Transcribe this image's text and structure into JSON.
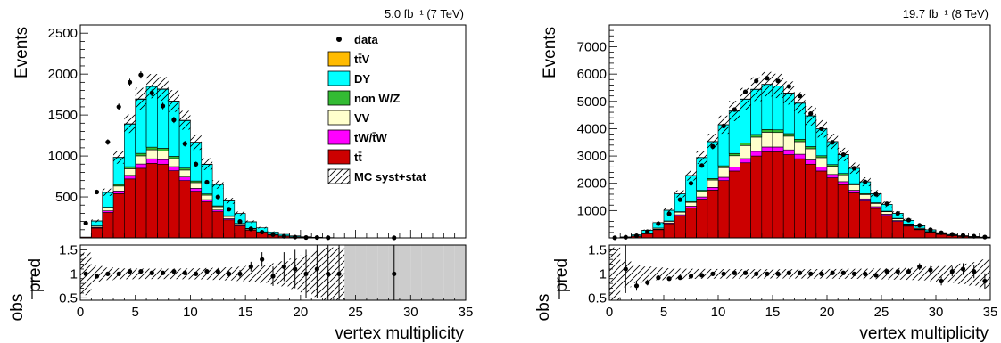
{
  "chart_data": [
    {
      "type": "stacked-bar",
      "luminosity_label": "5.0 fb⁻¹ (7 TeV)",
      "ylabel": "Events",
      "xlabel": "vertex multiplicity",
      "xlim": [
        0,
        35
      ],
      "ylim": [
        0,
        2600
      ],
      "yticks": [
        500,
        1000,
        1500,
        2000,
        2500
      ],
      "xticks": [
        0,
        5,
        10,
        15,
        20,
        25,
        30,
        35
      ],
      "legend": {
        "placement": "top-right",
        "entries": [
          {
            "label": "data",
            "kind": "marker"
          },
          {
            "label": "tt̄V",
            "kind": "box",
            "color": "#ffbb00"
          },
          {
            "label": "DY",
            "kind": "box",
            "color": "#00ffff"
          },
          {
            "label": "non W/Z",
            "kind": "box",
            "color": "#33bb33"
          },
          {
            "label": "VV",
            "kind": "box",
            "color": "#ffffcc"
          },
          {
            "label": "tW/t̄W",
            "kind": "box",
            "color": "#ff00ff"
          },
          {
            "label": "tt̄",
            "kind": "box",
            "color": "#cc0000"
          },
          {
            "label": "MC syst+stat",
            "kind": "hatch"
          }
        ]
      },
      "series": [
        {
          "name": "tt̄",
          "color": "#cc0000",
          "values": [
            10,
            120,
            310,
            540,
            720,
            850,
            910,
            900,
            820,
            700,
            570,
            440,
            320,
            220,
            145,
            95,
            60,
            35,
            20,
            12,
            7,
            4,
            2,
            1,
            0,
            0,
            0,
            0,
            0,
            0,
            0,
            0,
            0,
            0,
            0
          ]
        },
        {
          "name": "tW/t̄W",
          "color": "#ff00ff",
          "values": [
            0,
            8,
            20,
            33,
            44,
            52,
            56,
            55,
            50,
            43,
            35,
            27,
            20,
            14,
            9,
            6,
            4,
            2,
            1,
            1,
            0,
            0,
            0,
            0,
            0,
            0,
            0,
            0,
            0,
            0,
            0,
            0,
            0,
            0,
            0
          ]
        },
        {
          "name": "VV",
          "color": "#ffffcc",
          "values": [
            0,
            15,
            35,
            60,
            80,
            100,
            110,
            108,
            98,
            85,
            70,
            55,
            40,
            28,
            18,
            12,
            8,
            5,
            3,
            2,
            1,
            1,
            0,
            0,
            0,
            0,
            0,
            0,
            0,
            0,
            0,
            0,
            0,
            0,
            0
          ]
        },
        {
          "name": "non W/Z",
          "color": "#33bb33",
          "values": [
            0,
            3,
            10,
            18,
            25,
            30,
            32,
            31,
            28,
            24,
            20,
            15,
            11,
            8,
            5,
            3,
            2,
            1,
            1,
            0,
            0,
            0,
            0,
            0,
            0,
            0,
            0,
            0,
            0,
            0,
            0,
            0,
            0,
            0,
            0
          ]
        },
        {
          "name": "DY",
          "color": "#00ffff",
          "values": [
            0,
            60,
            180,
            330,
            520,
            660,
            740,
            720,
            670,
            580,
            470,
            360,
            260,
            180,
            120,
            80,
            50,
            30,
            18,
            10,
            6,
            3,
            2,
            1,
            0,
            0,
            0,
            0,
            0,
            0,
            0,
            0,
            0,
            0,
            0
          ]
        },
        {
          "name": "tt̄V",
          "color": "#ffbb00",
          "values": [
            0,
            1,
            2,
            3,
            4,
            5,
            5,
            5,
            5,
            4,
            4,
            3,
            2,
            2,
            1,
            1,
            0,
            0,
            0,
            0,
            0,
            0,
            0,
            0,
            0,
            0,
            0,
            0,
            0,
            0,
            0,
            0,
            0,
            0,
            0
          ]
        }
      ],
      "data_points": [
        180,
        560,
        1170,
        1600,
        1900,
        1990,
        1770,
        1610,
        1440,
        1150,
        900,
        680,
        500,
        350,
        200,
        110,
        70,
        40,
        20,
        10,
        5,
        5,
        3,
        null,
        null,
        null,
        null,
        null,
        1,
        null,
        null,
        null,
        null,
        null,
        null
      ],
      "ratio": {
        "ylabel_top": "obs",
        "ylabel_bottom": "pred",
        "ylim": [
          0.45,
          1.6
        ],
        "yticks": [
          0.5,
          1,
          1.5
        ],
        "values": [
          1.0,
          0.95,
          1.0,
          1.0,
          1.05,
          1.05,
          1.02,
          1.02,
          1.05,
          1.02,
          1.0,
          1.05,
          1.05,
          1.0,
          1.0,
          1.15,
          1.3,
          0.95,
          1.15,
          1.1,
          1.0,
          1.1,
          1.0,
          1.0,
          null,
          null,
          null,
          null,
          1.0,
          null,
          null,
          null,
          null,
          null,
          null
        ],
        "errors": [
          0.04,
          0.04,
          0.03,
          0.03,
          0.03,
          0.03,
          0.03,
          0.03,
          0.03,
          0.03,
          0.04,
          0.04,
          0.05,
          0.06,
          0.08,
          0.1,
          0.15,
          0.2,
          0.3,
          0.4,
          0.5,
          0.6,
          0.6,
          0.6,
          null,
          null,
          null,
          null,
          0.8,
          null,
          null,
          null,
          null,
          null,
          null
        ]
      }
    },
    {
      "type": "stacked-bar",
      "luminosity_label": "19.7 fb⁻¹ (8 TeV)",
      "ylabel": "Events",
      "xlabel": "vertex multiplicity",
      "xlim": [
        0,
        35
      ],
      "ylim": [
        0,
        7800
      ],
      "yticks": [
        1000,
        2000,
        3000,
        4000,
        5000,
        6000,
        7000
      ],
      "xticks": [
        0,
        5,
        10,
        15,
        20,
        25,
        30,
        35
      ],
      "series": [
        {
          "name": "tt̄",
          "color": "#cc0000",
          "values": [
            5,
            20,
            60,
            150,
            300,
            520,
            800,
            1100,
            1420,
            1750,
            2100,
            2450,
            2750,
            3000,
            3150,
            3150,
            3050,
            2900,
            2700,
            2450,
            2200,
            1950,
            1650,
            1350,
            1080,
            820,
            600,
            430,
            300,
            200,
            130,
            85,
            55,
            35,
            20
          ]
        },
        {
          "name": "tW/t̄W",
          "color": "#ff00ff",
          "values": [
            0,
            2,
            4,
            10,
            18,
            28,
            45,
            60,
            80,
            100,
            120,
            140,
            155,
            170,
            180,
            180,
            175,
            165,
            155,
            140,
            125,
            110,
            95,
            78,
            62,
            48,
            35,
            25,
            17,
            11,
            7,
            5,
            3,
            2,
            1
          ]
        },
        {
          "name": "VV",
          "color": "#ffffcc",
          "values": [
            0,
            3,
            8,
            18,
            35,
            60,
            95,
            140,
            200,
            270,
            350,
            420,
            480,
            520,
            540,
            530,
            500,
            460,
            410,
            350,
            300,
            250,
            200,
            160,
            120,
            90,
            65,
            45,
            30,
            20,
            13,
            9,
            6,
            4,
            2
          ]
        },
        {
          "name": "non W/Z",
          "color": "#33bb33",
          "values": [
            0,
            1,
            2,
            4,
            8,
            13,
            20,
            30,
            42,
            55,
            70,
            82,
            92,
            98,
            100,
            98,
            94,
            88,
            80,
            70,
            60,
            50,
            42,
            33,
            26,
            20,
            15,
            11,
            8,
            5,
            3,
            2,
            1,
            1,
            0
          ]
        },
        {
          "name": "DY",
          "color": "#00ffff",
          "values": [
            0,
            10,
            40,
            100,
            200,
            390,
            650,
            950,
            1200,
            1350,
            1500,
            1550,
            1600,
            1650,
            1650,
            1600,
            1480,
            1320,
            1120,
            980,
            840,
            690,
            560,
            430,
            330,
            250,
            180,
            130,
            90,
            60,
            40,
            25,
            16,
            10,
            6
          ]
        },
        {
          "name": "tt̄V",
          "color": "#ffbb00",
          "values": [
            0,
            0,
            0,
            1,
            1,
            2,
            3,
            4,
            5,
            6,
            7,
            8,
            9,
            9,
            9,
            9,
            9,
            8,
            8,
            7,
            6,
            5,
            4,
            4,
            3,
            2,
            2,
            1,
            1,
            1,
            0,
            0,
            0,
            0,
            0
          ]
        }
      ],
      "data_points": [
        5,
        25,
        80,
        230,
        520,
        880,
        1400,
        2000,
        2650,
        3350,
        4100,
        4700,
        5350,
        5750,
        5850,
        5750,
        5550,
        5200,
        4550,
        4000,
        3500,
        3050,
        2550,
        2050,
        1600,
        1250,
        900,
        650,
        460,
        300,
        190,
        130,
        90,
        60,
        30
      ],
      "ratio": {
        "ylabel_top": "obs",
        "ylabel_bottom": "pred",
        "ylim": [
          0.45,
          1.6
        ],
        "yticks": [
          0.5,
          1,
          1.5
        ],
        "values": [
          null,
          1.1,
          0.75,
          0.82,
          0.92,
          0.9,
          0.92,
          0.95,
          0.97,
          1.0,
          1.0,
          1.02,
          1.02,
          1.0,
          1.0,
          1.0,
          1.02,
          1.02,
          1.0,
          1.0,
          1.02,
          1.02,
          1.0,
          1.0,
          0.97,
          1.05,
          1.05,
          1.05,
          1.15,
          1.08,
          0.85,
          1.05,
          1.1,
          1.05,
          0.85
        ],
        "errors": [
          null,
          0.5,
          0.1,
          0.06,
          0.04,
          0.03,
          0.02,
          0.02,
          0.02,
          0.02,
          0.02,
          0.02,
          0.02,
          0.02,
          0.02,
          0.02,
          0.02,
          0.02,
          0.02,
          0.02,
          0.02,
          0.02,
          0.02,
          0.03,
          0.03,
          0.04,
          0.05,
          0.06,
          0.07,
          0.08,
          0.09,
          0.1,
          0.12,
          0.14,
          0.16
        ]
      }
    }
  ]
}
